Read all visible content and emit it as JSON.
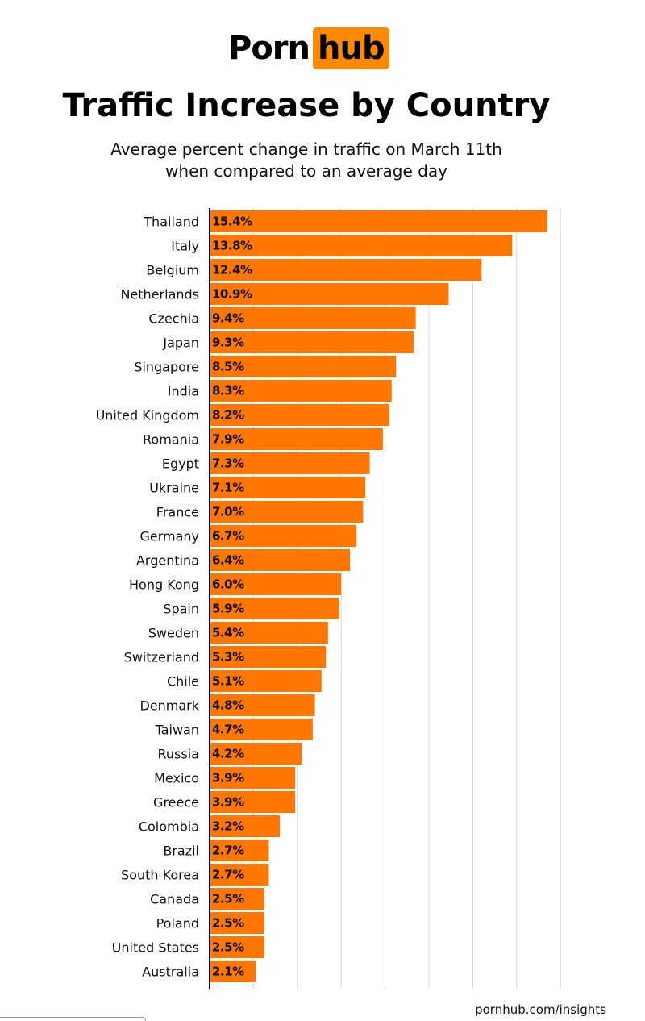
{
  "logo": {
    "part1": "Porn",
    "part2": "hub"
  },
  "colors": {
    "bar": "#ff7700",
    "accent": "#ff8a00",
    "grid": "#d9d9d9",
    "axis": "#000000"
  },
  "chart_data": {
    "type": "bar",
    "orientation": "horizontal",
    "title": "Traffic Increase by Country",
    "subtitle": [
      "Average percent change in traffic on March 11th",
      "when compared to an average day"
    ],
    "categories": [
      "Thailand",
      "Italy",
      "Belgium",
      "Netherlands",
      "Czechia",
      "Japan",
      "Singapore",
      "India",
      "United Kingdom",
      "Romania",
      "Egypt",
      "Ukraine",
      "France",
      "Germany",
      "Argentina",
      "Hong Kong",
      "Spain",
      "Sweden",
      "Switzerland",
      "Chile",
      "Denmark",
      "Taiwan",
      "Russia",
      "Mexico",
      "Greece",
      "Colombia",
      "Brazil",
      "South Korea",
      "Canada",
      "Poland",
      "United States",
      "Australia"
    ],
    "values": [
      15.4,
      13.8,
      12.4,
      10.9,
      9.4,
      9.3,
      8.5,
      8.3,
      8.2,
      7.9,
      7.3,
      7.1,
      7.0,
      6.7,
      6.4,
      6.0,
      5.9,
      5.4,
      5.3,
      5.1,
      4.8,
      4.7,
      4.2,
      3.9,
      3.9,
      3.2,
      2.7,
      2.7,
      2.5,
      2.5,
      2.5,
      2.1
    ],
    "data_labels": [
      "15.4%",
      "13.8%",
      "12.4%",
      "10.9%",
      "9.4%",
      "9.3%",
      "8.5%",
      "8.3%",
      "8.2%",
      "7.9%",
      "7.3%",
      "7.1%",
      "7.0%",
      "6.7%",
      "6.4%",
      "6.0%",
      "5.9%",
      "5.4%",
      "5.3%",
      "5.1%",
      "4.8%",
      "4.7%",
      "4.2%",
      "3.9%",
      "3.9%",
      "3.2%",
      "2.7%",
      "2.7%",
      "2.5%",
      "2.5%",
      "2.5%",
      "2.1%"
    ],
    "xlim": [
      0,
      16
    ],
    "grid_step": 2,
    "grid": true
  },
  "footer": "pornhub.com/insights"
}
